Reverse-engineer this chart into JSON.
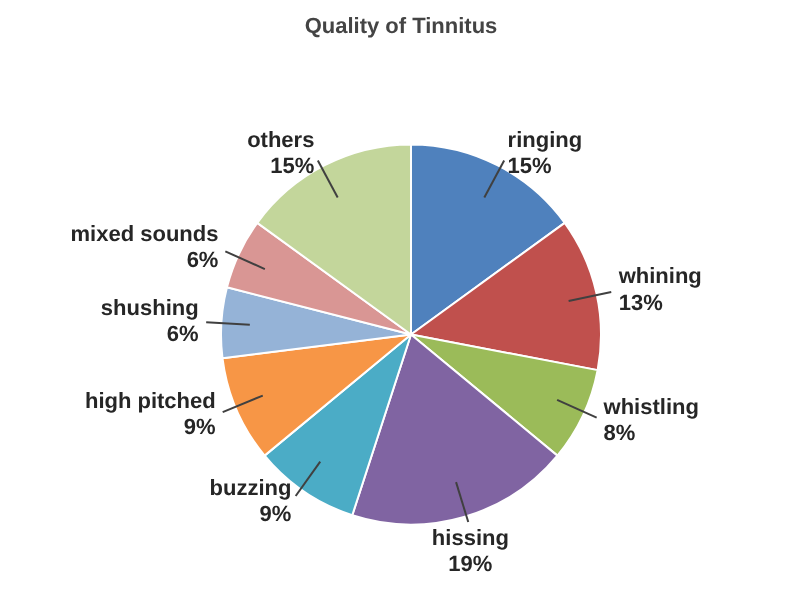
{
  "chart_data": {
    "type": "pie",
    "title": "Quality of Tinnitus",
    "categories": [
      "ringing",
      "whining",
      "whistling",
      "hissing",
      "buzzing",
      "high pitched",
      "shushing",
      "mixed sounds",
      "others"
    ],
    "values": [
      15,
      13,
      8,
      19,
      9,
      9,
      6,
      6,
      15
    ],
    "colors": [
      "#4f81bd",
      "#c0504d",
      "#9bbb59",
      "#8064a2",
      "#4bacc6",
      "#f79646",
      "#95b3d7",
      "#d99694",
      "#c3d69b"
    ],
    "value_labels": [
      "15%",
      "13%",
      "8%",
      "19%",
      "9%",
      "9%",
      "6%",
      "6%",
      "15%"
    ]
  }
}
